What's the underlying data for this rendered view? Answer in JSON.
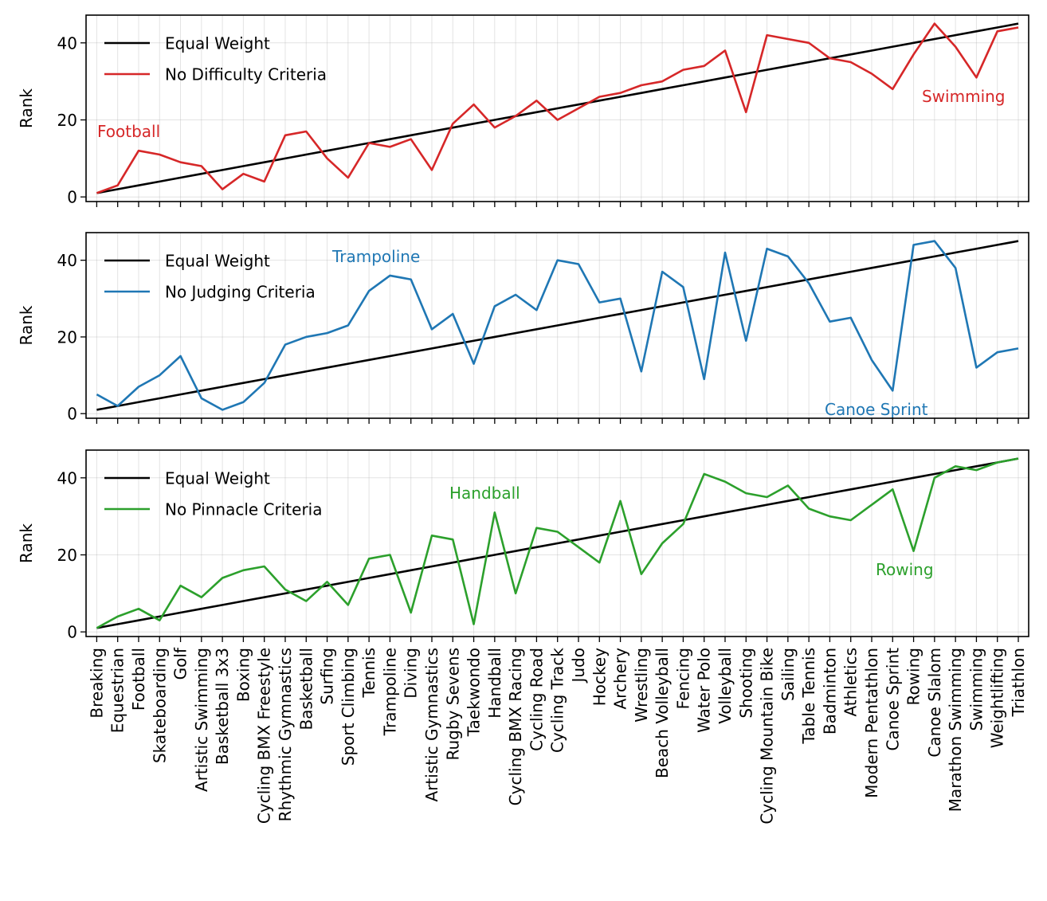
{
  "figure": {
    "xtick_labels": [
      "Breaking",
      "Equestrian",
      "Football",
      "Skateboarding",
      "Golf",
      "Artistic Swimming",
      "Basketball 3x3",
      "Boxing",
      "Cycling BMX Freestyle",
      "Rhythmic Gymnastics",
      "Basketball",
      "Surfing",
      "Sport Climbing",
      "Tennis",
      "Trampoline",
      "Diving",
      "Artistic Gymnastics",
      "Rugby Sevens",
      "Taekwondo",
      "Handball",
      "Cycling BMX Racing",
      "Cycling Road",
      "Cycling Track",
      "Judo",
      "Hockey",
      "Archery",
      "Wrestling",
      "Beach Volleyball",
      "Fencing",
      "Water Polo",
      "Volleyball",
      "Shooting",
      "Cycling Mountain Bike",
      "Sailing",
      "Table Tennis",
      "Badminton",
      "Athletics",
      "Modern Pentathlon",
      "Canoe Sprint",
      "Rowing",
      "Canoe Slalom",
      "Marathon Swimming",
      "Swimming",
      "Weightlifting",
      "Triathlon"
    ]
  },
  "chart_data": [
    {
      "type": "line",
      "ylabel": "Rank",
      "ylim": [
        -1.2,
        47.2
      ],
      "yticks": [
        0,
        20,
        40
      ],
      "grid": true,
      "legend_placement": "upper-left",
      "series": [
        {
          "name": "Equal Weight",
          "color": "#000000",
          "values": [
            1,
            2,
            3,
            4,
            5,
            6,
            7,
            8,
            9,
            10,
            11,
            12,
            13,
            14,
            15,
            16,
            17,
            18,
            19,
            20,
            21,
            22,
            23,
            24,
            25,
            26,
            27,
            28,
            29,
            30,
            31,
            32,
            33,
            34,
            35,
            36,
            37,
            38,
            39,
            40,
            41,
            42,
            43,
            44,
            45
          ]
        },
        {
          "name": "No Difficulty Criteria",
          "color": "#d62728",
          "values": [
            1,
            3,
            12,
            11,
            9,
            8,
            2,
            6,
            4,
            16,
            17,
            10,
            5,
            14,
            13,
            15,
            7,
            19,
            24,
            18,
            21,
            25,
            20,
            23,
            26,
            27,
            29,
            30,
            33,
            34,
            38,
            22,
            42,
            41,
            40,
            36,
            35,
            32,
            28,
            37,
            45,
            39,
            31,
            43,
            44
          ]
        }
      ],
      "annotations": [
        {
          "text": "Football",
          "color": "#d62728"
        },
        {
          "text": "Swimming",
          "color": "#d62728"
        }
      ]
    },
    {
      "type": "line",
      "ylabel": "Rank",
      "ylim": [
        -1.2,
        47.2
      ],
      "yticks": [
        0,
        20,
        40
      ],
      "grid": true,
      "legend_placement": "upper-left",
      "series": [
        {
          "name": "Equal Weight",
          "color": "#000000",
          "values": [
            1,
            2,
            3,
            4,
            5,
            6,
            7,
            8,
            9,
            10,
            11,
            12,
            13,
            14,
            15,
            16,
            17,
            18,
            19,
            20,
            21,
            22,
            23,
            24,
            25,
            26,
            27,
            28,
            29,
            30,
            31,
            32,
            33,
            34,
            35,
            36,
            37,
            38,
            39,
            40,
            41,
            42,
            43,
            44,
            45
          ]
        },
        {
          "name": "No Judging Criteria",
          "color": "#1f77b4",
          "values": [
            5,
            2,
            7,
            10,
            15,
            4,
            1,
            3,
            8,
            18,
            20,
            21,
            23,
            32,
            36,
            35,
            22,
            26,
            13,
            28,
            31,
            27,
            40,
            39,
            29,
            30,
            11,
            37,
            33,
            9,
            42,
            19,
            43,
            41,
            34,
            24,
            25,
            14,
            6,
            44,
            45,
            38,
            12,
            16,
            17
          ]
        }
      ],
      "annotations": [
        {
          "text": "Trampoline",
          "color": "#1f77b4"
        },
        {
          "text": "Canoe Sprint",
          "color": "#1f77b4"
        }
      ]
    },
    {
      "type": "line",
      "ylabel": "Rank",
      "ylim": [
        -1.2,
        47.2
      ],
      "yticks": [
        0,
        20,
        40
      ],
      "grid": true,
      "legend_placement": "upper-left",
      "series": [
        {
          "name": "Equal Weight",
          "color": "#000000",
          "values": [
            1,
            2,
            3,
            4,
            5,
            6,
            7,
            8,
            9,
            10,
            11,
            12,
            13,
            14,
            15,
            16,
            17,
            18,
            19,
            20,
            21,
            22,
            23,
            24,
            25,
            26,
            27,
            28,
            29,
            30,
            31,
            32,
            33,
            34,
            35,
            36,
            37,
            38,
            39,
            40,
            41,
            42,
            43,
            44,
            45
          ]
        },
        {
          "name": "No Pinnacle Criteria",
          "color": "#2ca02c",
          "values": [
            1,
            4,
            6,
            3,
            12,
            9,
            14,
            16,
            17,
            11,
            8,
            13,
            7,
            19,
            20,
            5,
            25,
            24,
            2,
            31,
            10,
            27,
            26,
            22,
            18,
            34,
            15,
            23,
            28,
            41,
            39,
            36,
            35,
            38,
            32,
            30,
            29,
            33,
            37,
            21,
            40,
            43,
            42,
            44,
            45
          ]
        }
      ],
      "annotations": [
        {
          "text": "Handball",
          "color": "#2ca02c"
        },
        {
          "text": "Rowing",
          "color": "#2ca02c"
        }
      ]
    }
  ]
}
